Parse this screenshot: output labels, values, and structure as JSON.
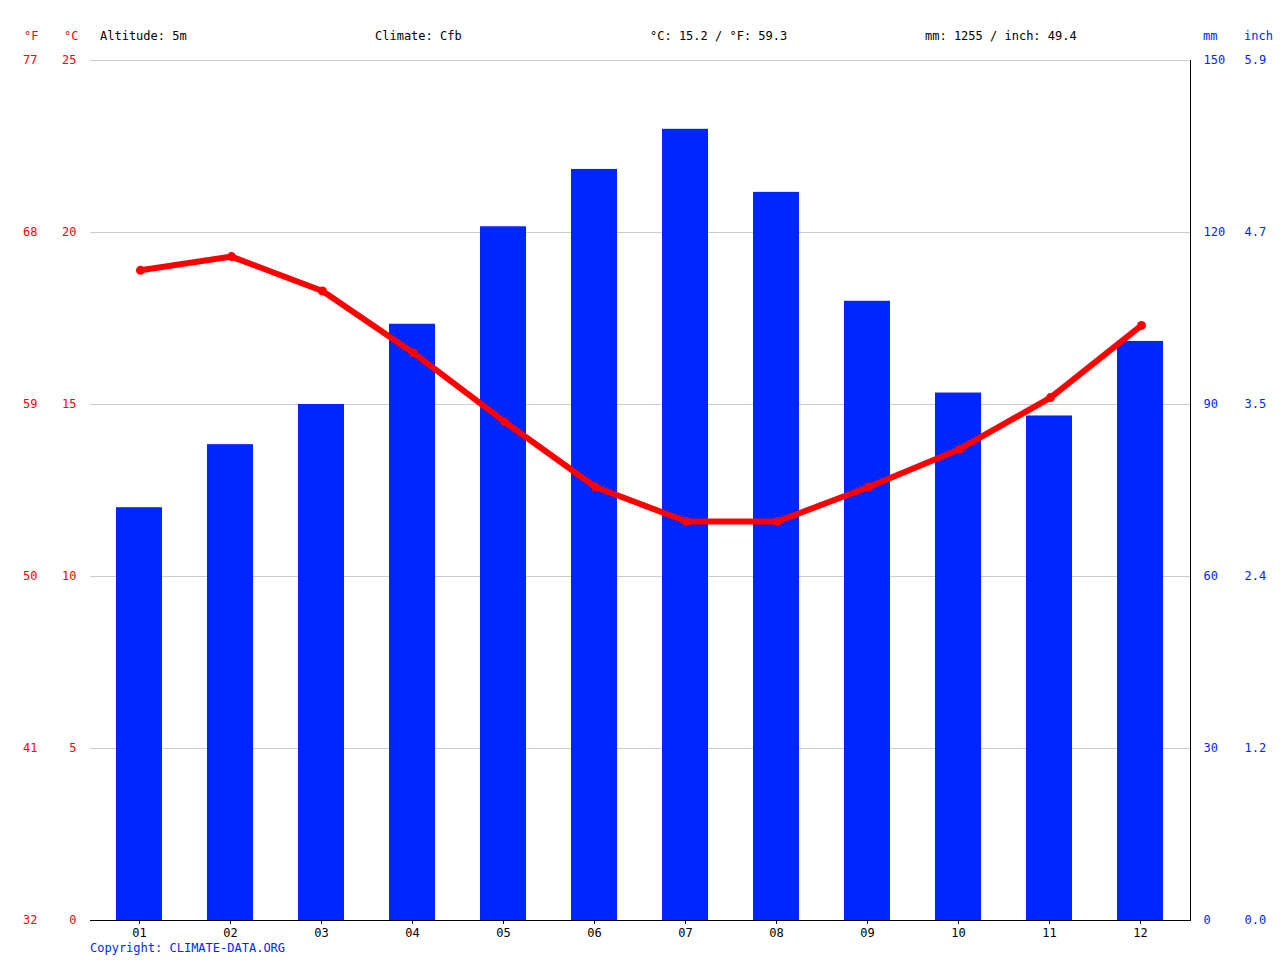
{
  "chart_data": {
    "type": "bar",
    "header": [
      "Altitude: 5m",
      "Climate: Cfb",
      "°C: 15.2 / °F: 59.3",
      "mm: 1255 / inch: 49.4"
    ],
    "caption": "Copyright: CLIMATE-DATA.ORG",
    "categories": [
      "01",
      "02",
      "03",
      "04",
      "05",
      "06",
      "07",
      "08",
      "09",
      "10",
      "11",
      "12"
    ],
    "series": [
      {
        "name": "mm",
        "type": "bar",
        "axis": "y2",
        "color": "#0026ff",
        "values": [
          72,
          83,
          90,
          104,
          121,
          131,
          138,
          127,
          108,
          92,
          88,
          101
        ]
      },
      {
        "name": "°C",
        "type": "line",
        "color": "#ff0000",
        "marker": "circle",
        "values": [
          18.9,
          19.3,
          18.3,
          16.5,
          14.5,
          12.6,
          11.6,
          11.6,
          12.6,
          13.7,
          15.2,
          17.3
        ]
      }
    ],
    "ylim": [
      0,
      25
    ],
    "yticks": [
      0,
      5,
      10,
      15,
      20,
      25
    ],
    "ylabel_f": "°F",
    "yticks_f": [
      32,
      41,
      50,
      59,
      68,
      77
    ],
    "y2lim": [
      0,
      150
    ],
    "y2ticks": [
      0,
      30,
      60,
      90,
      120,
      150
    ],
    "y2label_inch": "inch",
    "y2ticks_inch": [
      {
        "value": 0,
        "label": "0.0"
      },
      {
        "value": 1.2,
        "label": "1.2"
      },
      {
        "value": 2.4,
        "label": "2.4"
      },
      {
        "value": 3.5,
        "label": "3.5"
      },
      {
        "value": 4.7,
        "label": "4.7"
      },
      {
        "value": 5.9,
        "label": "5.9"
      }
    ],
    "grid": true
  }
}
